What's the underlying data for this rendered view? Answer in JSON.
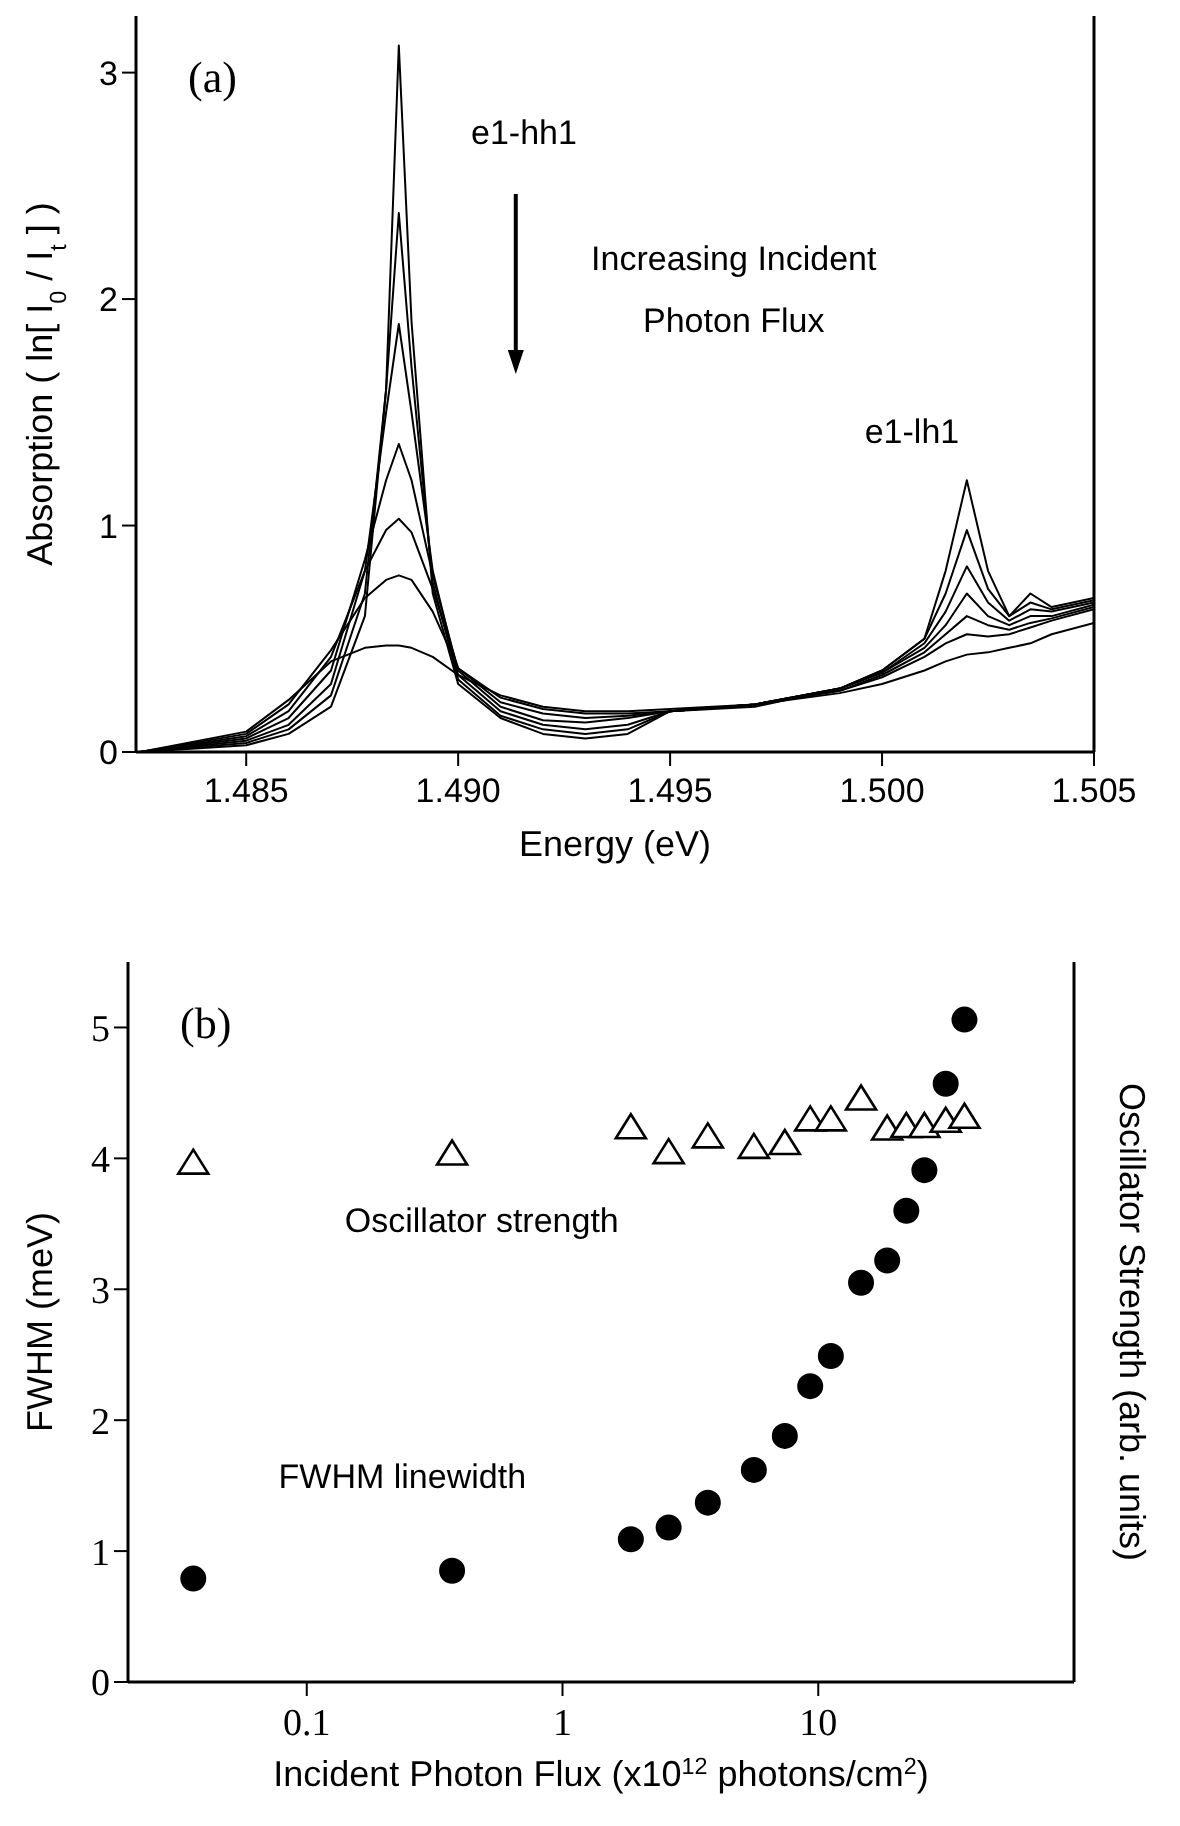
{
  "chart_data": [
    {
      "type": "line",
      "xlabel": "Energy (eV)",
      "ylabel": "Absorption ( ln[ I$_{0}$ / I$_{t}$ ] )",
      "x": [
        1.4825,
        1.485,
        1.486,
        1.487,
        1.4878,
        1.4883,
        1.4886,
        1.4889,
        1.4894,
        1.49,
        1.491,
        1.492,
        1.493,
        1.494,
        1.495,
        1.497,
        1.499,
        1.5,
        1.501,
        1.5015,
        1.502,
        1.5025,
        1.503,
        1.5035,
        1.504,
        1.505
      ],
      "series": [
        {
          "color": "#000000",
          "values": [
            0,
            0.03,
            0.08,
            0.2,
            0.6,
            1.6,
            3.12,
            1.9,
            0.7,
            0.3,
            0.15,
            0.08,
            0.06,
            0.08,
            0.18,
            0.2,
            0.28,
            0.36,
            0.5,
            0.8,
            1.2,
            0.8,
            0.6,
            0.7,
            0.64,
            0.68
          ]
        },
        {
          "color": "#000000",
          "values": [
            0,
            0.04,
            0.1,
            0.25,
            0.7,
            1.6,
            2.38,
            1.7,
            0.75,
            0.32,
            0.16,
            0.1,
            0.08,
            0.1,
            0.18,
            0.21,
            0.28,
            0.36,
            0.5,
            0.7,
            0.98,
            0.72,
            0.6,
            0.66,
            0.63,
            0.67
          ]
        },
        {
          "color": "#000000",
          "values": [
            0,
            0.05,
            0.12,
            0.3,
            0.8,
            1.5,
            1.89,
            1.5,
            0.8,
            0.34,
            0.18,
            0.12,
            0.1,
            0.12,
            0.18,
            0.21,
            0.28,
            0.35,
            0.48,
            0.62,
            0.82,
            0.66,
            0.58,
            0.63,
            0.62,
            0.66
          ]
        },
        {
          "color": "#000000",
          "values": [
            0,
            0.06,
            0.15,
            0.36,
            0.85,
            1.2,
            1.36,
            1.2,
            0.78,
            0.36,
            0.2,
            0.14,
            0.13,
            0.15,
            0.18,
            0.21,
            0.28,
            0.35,
            0.46,
            0.56,
            0.7,
            0.6,
            0.56,
            0.6,
            0.6,
            0.65
          ]
        },
        {
          "color": "#000000",
          "values": [
            0,
            0.07,
            0.18,
            0.42,
            0.8,
            0.98,
            1.03,
            0.97,
            0.72,
            0.37,
            0.22,
            0.17,
            0.15,
            0.16,
            0.18,
            0.21,
            0.27,
            0.34,
            0.44,
            0.52,
            0.6,
            0.56,
            0.54,
            0.57,
            0.59,
            0.64
          ]
        },
        {
          "color": "#000000",
          "values": [
            0,
            0.08,
            0.21,
            0.45,
            0.68,
            0.76,
            0.78,
            0.76,
            0.62,
            0.37,
            0.24,
            0.19,
            0.17,
            0.17,
            0.18,
            0.21,
            0.27,
            0.33,
            0.42,
            0.48,
            0.52,
            0.51,
            0.52,
            0.55,
            0.58,
            0.63
          ]
        },
        {
          "color": "#000000",
          "values": [
            0,
            0.09,
            0.23,
            0.4,
            0.46,
            0.47,
            0.47,
            0.46,
            0.42,
            0.34,
            0.25,
            0.2,
            0.18,
            0.18,
            0.19,
            0.21,
            0.26,
            0.3,
            0.36,
            0.4,
            0.43,
            0.44,
            0.46,
            0.48,
            0.52,
            0.57
          ]
        }
      ],
      "xlim": [
        1.4824,
        1.505
      ],
      "ylim": [
        0,
        3.25
      ],
      "xticks": [
        {
          "value": 1.485,
          "label": "1.485"
        },
        {
          "value": 1.49,
          "label": "1.490"
        },
        {
          "value": 1.495,
          "label": "1.495"
        },
        {
          "value": 1.5,
          "label": "1.500"
        },
        {
          "value": 1.505,
          "label": "1.505"
        }
      ],
      "yticks": [
        0,
        1,
        2,
        3
      ],
      "annotations": [
        "(a)",
        "e1-hh1",
        "Increasing Incident\nPhoton Flux",
        "e1-lh1"
      ]
    },
    {
      "type": "scatter",
      "xlabel": "Incident Photon Flux (x10$^{12}$ photons/cm$^{2}$)",
      "ylabel": "FWHM (meV)",
      "y2label": "Oscillator Strength (arb. units)",
      "x": [
        0.036,
        0.37,
        1.85,
        2.6,
        3.7,
        5.6,
        7.4,
        9.3,
        11.2,
        14.7,
        18.6,
        22.1,
        26,
        31.5,
        37.3
      ],
      "series": [
        {
          "name": "Oscillator strength",
          "color": "#000000",
          "marker": "triangle",
          "values": [
            3.96,
            4.03,
            4.23,
            4.04,
            4.16,
            4.08,
            4.11,
            4.29,
            4.29,
            4.45,
            4.22,
            4.24,
            4.24,
            4.28,
            4.31
          ]
        },
        {
          "name": "FWHM linewidth",
          "color": "#000000",
          "marker": "circle",
          "values": [
            0.79,
            0.85,
            1.09,
            1.18,
            1.37,
            1.62,
            1.88,
            2.26,
            2.49,
            3.05,
            3.22,
            3.6,
            3.91,
            4.57,
            5.06
          ]
        }
      ],
      "log": "x",
      "xlim": [
        0.02,
        100
      ],
      "ylim": [
        0,
        5.5
      ],
      "xticks": [
        0.1,
        1,
        10
      ],
      "yticks": [
        0,
        1,
        2,
        3,
        4,
        5
      ],
      "annotations": [
        "(b)"
      ]
    }
  ]
}
